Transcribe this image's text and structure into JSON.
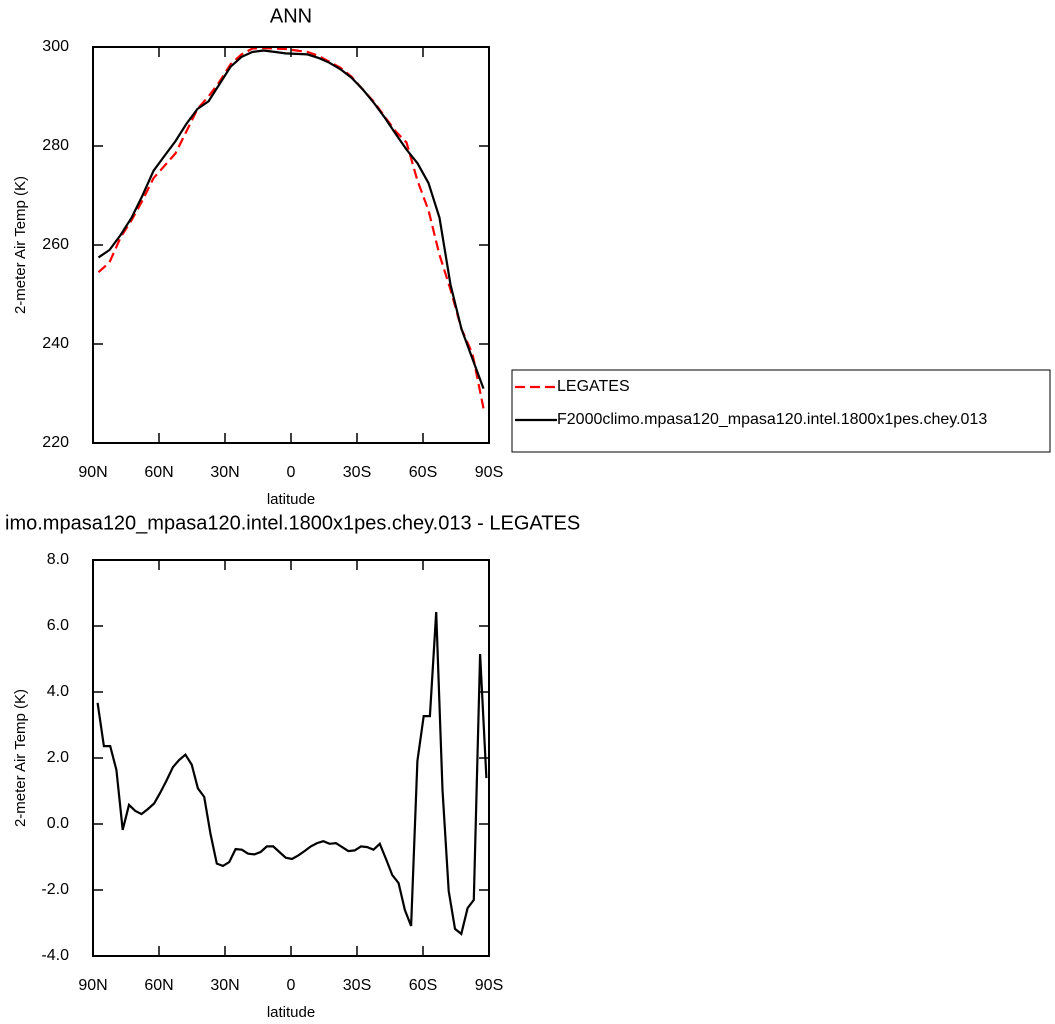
{
  "chart_data": [
    {
      "type": "line",
      "title": "ANN",
      "xlabel": "latitude",
      "ylabel": "2-meter Air Temp (K)",
      "x": [
        87.5,
        82.5,
        77.5,
        72.5,
        67.5,
        62.5,
        57.5,
        52.5,
        47.5,
        42.5,
        37.5,
        32.5,
        27.5,
        22.5,
        17.5,
        12.5,
        7.5,
        2.5,
        -2.5,
        -7.5,
        -12.5,
        -17.5,
        -22.5,
        -27.5,
        -32.5,
        -37.5,
        -42.5,
        -47.5,
        -52.5,
        -57.5,
        -62.5,
        -67.5,
        -72.5,
        -77.5,
        -82.5,
        -87.5
      ],
      "series": [
        {
          "name": "LEGATES",
          "color": "#ff0000",
          "dash": "dashed",
          "values": [
            254.5,
            256.5,
            261.5,
            265,
            269,
            273.5,
            276,
            278.5,
            283,
            287.5,
            290,
            293,
            296.5,
            298.5,
            299.7,
            299.8,
            299.7,
            299.6,
            299.3,
            299,
            298.2,
            297,
            295.8,
            294,
            291.5,
            289,
            286,
            283,
            280.7,
            273,
            267,
            258,
            251,
            243,
            238,
            227
          ]
        },
        {
          "name": "F2000climo.mpasa120_mpasa120.intel.1800x1pes.chey.013",
          "color": "#000000",
          "dash": "solid",
          "values": [
            257.5,
            259,
            262,
            265.5,
            270,
            275,
            278,
            281,
            284.5,
            287.5,
            289,
            292.5,
            296,
            298,
            299,
            299.3,
            299,
            298.7,
            298.6,
            298.5,
            297.8,
            296.8,
            295.5,
            293.8,
            291.5,
            288.8,
            285.8,
            282.5,
            279.3,
            276.5,
            272.5,
            265.5,
            252,
            243,
            237,
            231
          ]
        }
      ],
      "xlim": [
        90,
        -90
      ],
      "xticks": [
        {
          "value": 90,
          "label": "90N"
        },
        {
          "value": 60,
          "label": "60N"
        },
        {
          "value": 30,
          "label": "30N"
        },
        0,
        {
          "value": -30,
          "label": "30S"
        },
        {
          "value": -60,
          "label": "60S"
        },
        {
          "value": -90,
          "label": "90S"
        }
      ],
      "ylim": [
        220,
        300
      ],
      "yticks": [
        220,
        240,
        260,
        280,
        300
      ],
      "legend": "right"
    },
    {
      "type": "line",
      "title": "imo.mpasa120_mpasa120.intel.1800x1pes.chey.013 - LEGATES",
      "xlabel": "latitude",
      "ylabel": "2-meter Air Temp (K)",
      "x": [
        87.9,
        85.05,
        82.2,
        79.35,
        76.5,
        73.65,
        70.8,
        67.95,
        65.1,
        62.25,
        59.4,
        56.55,
        53.7,
        50.85,
        48.0,
        45.15,
        42.3,
        39.45,
        36.6,
        33.75,
        30.9,
        28.05,
        25.2,
        22.35,
        19.5,
        16.65,
        13.8,
        10.95,
        8.1,
        5.25,
        2.4,
        -0.45,
        -3.3,
        -6.15,
        -9.0,
        -11.85,
        -14.7,
        -17.55,
        -20.4,
        -23.25,
        -26.1,
        -28.95,
        -31.8,
        -34.65,
        -37.5,
        -40.35,
        -43.2,
        -46.05,
        -48.9,
        -51.75,
        -54.6,
        -57.45,
        -60.3,
        -63.15,
        -66.0,
        -68.85,
        -71.7,
        -74.55,
        -77.4,
        -80.25,
        -83.1,
        -85.95,
        -88.8
      ],
      "series": [
        {
          "color": "#000000",
          "values": [
            3.67,
            2.36,
            2.36,
            1.64,
            -0.18,
            0.58,
            0.4,
            0.3,
            0.45,
            0.62,
            0.95,
            1.32,
            1.72,
            1.94,
            2.1,
            1.8,
            1.08,
            0.82,
            -0.3,
            -1.2,
            -1.27,
            -1.15,
            -0.76,
            -0.78,
            -0.9,
            -0.92,
            -0.85,
            -0.68,
            -0.68,
            -0.85,
            -1.02,
            -1.06,
            -0.95,
            -0.82,
            -0.68,
            -0.58,
            -0.52,
            -0.6,
            -0.58,
            -0.7,
            -0.82,
            -0.8,
            -0.68,
            -0.7,
            -0.78,
            -0.6,
            -1.06,
            -1.55,
            -1.79,
            -2.6,
            -3.09,
            1.91,
            3.27,
            3.27,
            6.42,
            1.03,
            -2.03,
            -3.18,
            -3.33,
            -2.55,
            -2.3,
            5.15,
            1.39
          ]
        }
      ],
      "xlim": [
        90,
        -90
      ],
      "xticks": [
        {
          "value": 90,
          "label": "90N"
        },
        {
          "value": 60,
          "label": "60N"
        },
        {
          "value": 30,
          "label": "30N"
        },
        0,
        {
          "value": -30,
          "label": "30S"
        },
        {
          "value": -60,
          "label": "60S"
        },
        {
          "value": -90,
          "label": "90S"
        }
      ],
      "ylim": [
        -4,
        8
      ],
      "yticks": [
        {
          "value": -4,
          "label": "-4.0"
        },
        {
          "value": -2,
          "label": "-2.0"
        },
        {
          "value": 0,
          "label": "0.0"
        },
        {
          "value": 2,
          "label": "2.0"
        },
        {
          "value": 4,
          "label": "4.0"
        },
        {
          "value": 6,
          "label": "6.0"
        },
        {
          "value": 8,
          "label": "8.0"
        }
      ]
    }
  ]
}
